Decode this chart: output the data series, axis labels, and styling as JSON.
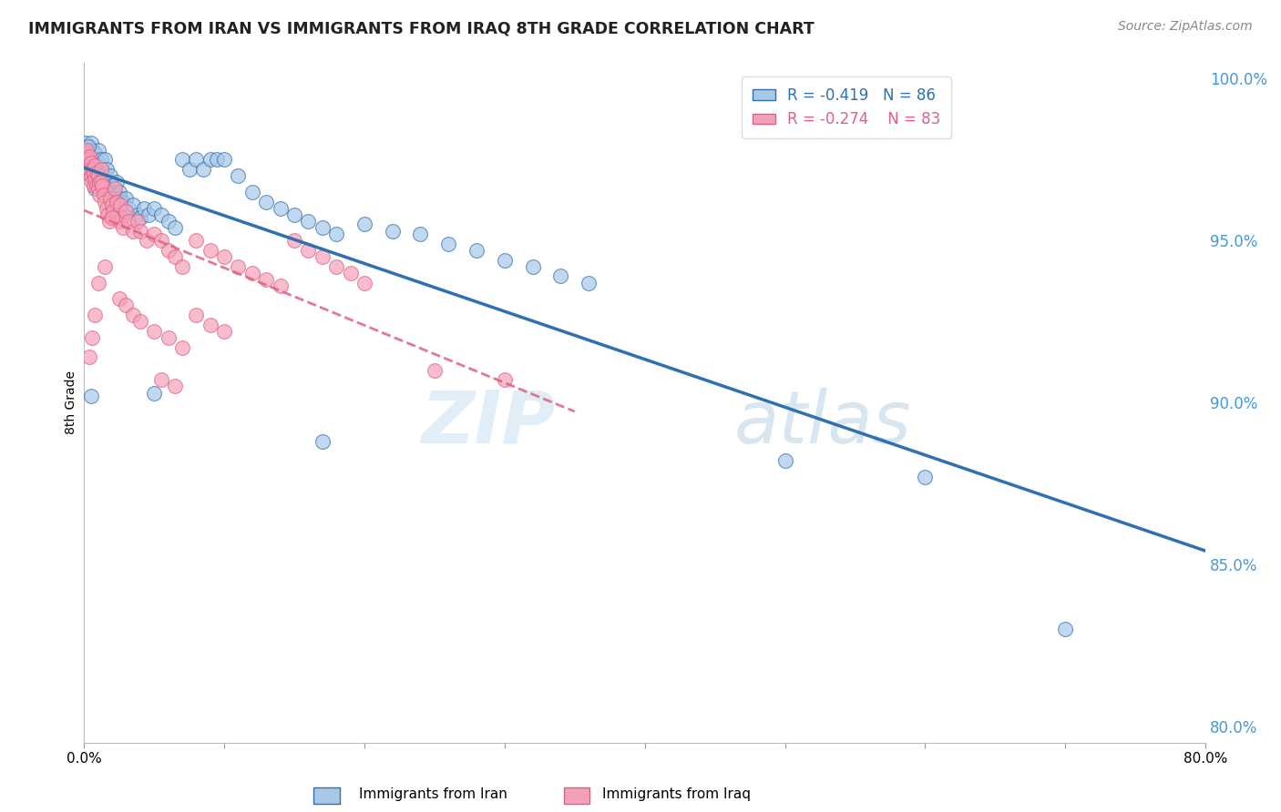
{
  "title": "IMMIGRANTS FROM IRAN VS IMMIGRANTS FROM IRAQ 8TH GRADE CORRELATION CHART",
  "source": "Source: ZipAtlas.com",
  "ylabel": "8th Grade",
  "legend_iran": "Immigrants from Iran",
  "legend_iraq": "Immigrants from Iraq",
  "R_iran": -0.419,
  "N_iran": 86,
  "R_iraq": -0.274,
  "N_iraq": 83,
  "color_iran": "#a8c8e8",
  "color_iraq": "#f4a0b8",
  "line_color_iran": "#3070b0",
  "line_color_iraq": "#e06080",
  "xlim": [
    0.0,
    0.8
  ],
  "ylim": [
    0.795,
    1.005
  ],
  "yticks": [
    0.8,
    0.85,
    0.9,
    0.95,
    1.0
  ],
  "ytick_labels": [
    "80.0%",
    "85.0%",
    "90.0%",
    "95.0%",
    "100.0%"
  ],
  "xticks": [
    0.0,
    0.1,
    0.2,
    0.3,
    0.4,
    0.5,
    0.6,
    0.7,
    0.8
  ],
  "xtick_labels": [
    "0.0%",
    "",
    "",
    "",
    "",
    "",
    "",
    "",
    "80.0%"
  ],
  "watermark_zip": "ZIP",
  "watermark_atlas": "atlas",
  "background_color": "#ffffff",
  "grid_color": "#cccccc",
  "right_axis_color": "#4499dd",
  "iran_x": [
    0.001,
    0.002,
    0.003,
    0.003,
    0.004,
    0.004,
    0.005,
    0.005,
    0.005,
    0.006,
    0.006,
    0.007,
    0.007,
    0.008,
    0.008,
    0.008,
    0.009,
    0.009,
    0.01,
    0.01,
    0.01,
    0.011,
    0.011,
    0.012,
    0.012,
    0.013,
    0.013,
    0.014,
    0.015,
    0.015,
    0.016,
    0.017,
    0.018,
    0.019,
    0.02,
    0.021,
    0.022,
    0.023,
    0.024,
    0.025,
    0.026,
    0.027,
    0.028,
    0.03,
    0.032,
    0.035,
    0.038,
    0.04,
    0.043,
    0.046,
    0.05,
    0.055,
    0.06,
    0.065,
    0.07,
    0.075,
    0.08,
    0.085,
    0.09,
    0.095,
    0.1,
    0.11,
    0.12,
    0.13,
    0.14,
    0.15,
    0.16,
    0.17,
    0.18,
    0.2,
    0.22,
    0.24,
    0.26,
    0.28,
    0.3,
    0.32,
    0.34,
    0.36,
    0.05,
    0.17,
    0.005,
    0.7,
    0.5,
    0.6,
    0.003,
    0.008
  ],
  "iran_y": [
    0.98,
    0.978,
    0.977,
    0.975,
    0.978,
    0.974,
    0.98,
    0.976,
    0.972,
    0.978,
    0.974,
    0.975,
    0.971,
    0.977,
    0.973,
    0.969,
    0.975,
    0.97,
    0.978,
    0.974,
    0.968,
    0.973,
    0.969,
    0.975,
    0.97,
    0.972,
    0.967,
    0.969,
    0.975,
    0.97,
    0.972,
    0.968,
    0.965,
    0.97,
    0.967,
    0.965,
    0.963,
    0.968,
    0.963,
    0.965,
    0.963,
    0.961,
    0.962,
    0.963,
    0.96,
    0.961,
    0.958,
    0.957,
    0.96,
    0.958,
    0.96,
    0.958,
    0.956,
    0.954,
    0.975,
    0.972,
    0.975,
    0.972,
    0.975,
    0.975,
    0.975,
    0.97,
    0.965,
    0.962,
    0.96,
    0.958,
    0.956,
    0.954,
    0.952,
    0.955,
    0.953,
    0.952,
    0.949,
    0.947,
    0.944,
    0.942,
    0.939,
    0.937,
    0.903,
    0.888,
    0.902,
    0.83,
    0.882,
    0.877,
    0.979,
    0.966
  ],
  "iraq_x": [
    0.001,
    0.002,
    0.002,
    0.003,
    0.003,
    0.004,
    0.004,
    0.005,
    0.005,
    0.006,
    0.006,
    0.007,
    0.007,
    0.008,
    0.008,
    0.009,
    0.009,
    0.01,
    0.01,
    0.011,
    0.011,
    0.012,
    0.012,
    0.013,
    0.014,
    0.015,
    0.016,
    0.017,
    0.018,
    0.019,
    0.02,
    0.021,
    0.022,
    0.023,
    0.024,
    0.025,
    0.026,
    0.027,
    0.028,
    0.03,
    0.032,
    0.035,
    0.038,
    0.04,
    0.045,
    0.05,
    0.055,
    0.06,
    0.065,
    0.07,
    0.08,
    0.09,
    0.1,
    0.11,
    0.12,
    0.13,
    0.14,
    0.15,
    0.16,
    0.17,
    0.18,
    0.19,
    0.2,
    0.025,
    0.03,
    0.035,
    0.04,
    0.05,
    0.06,
    0.07,
    0.08,
    0.09,
    0.1,
    0.055,
    0.065,
    0.004,
    0.006,
    0.008,
    0.01,
    0.015,
    0.02,
    0.25,
    0.3
  ],
  "iraq_y": [
    0.977,
    0.978,
    0.974,
    0.975,
    0.971,
    0.976,
    0.972,
    0.974,
    0.97,
    0.972,
    0.968,
    0.971,
    0.967,
    0.973,
    0.969,
    0.971,
    0.967,
    0.97,
    0.966,
    0.968,
    0.964,
    0.972,
    0.968,
    0.967,
    0.964,
    0.962,
    0.96,
    0.958,
    0.956,
    0.963,
    0.961,
    0.959,
    0.966,
    0.962,
    0.958,
    0.956,
    0.961,
    0.957,
    0.954,
    0.959,
    0.956,
    0.953,
    0.956,
    0.953,
    0.95,
    0.952,
    0.95,
    0.947,
    0.945,
    0.942,
    0.95,
    0.947,
    0.945,
    0.942,
    0.94,
    0.938,
    0.936,
    0.95,
    0.947,
    0.945,
    0.942,
    0.94,
    0.937,
    0.932,
    0.93,
    0.927,
    0.925,
    0.922,
    0.92,
    0.917,
    0.927,
    0.924,
    0.922,
    0.907,
    0.905,
    0.914,
    0.92,
    0.927,
    0.937,
    0.942,
    0.957,
    0.91,
    0.907
  ]
}
